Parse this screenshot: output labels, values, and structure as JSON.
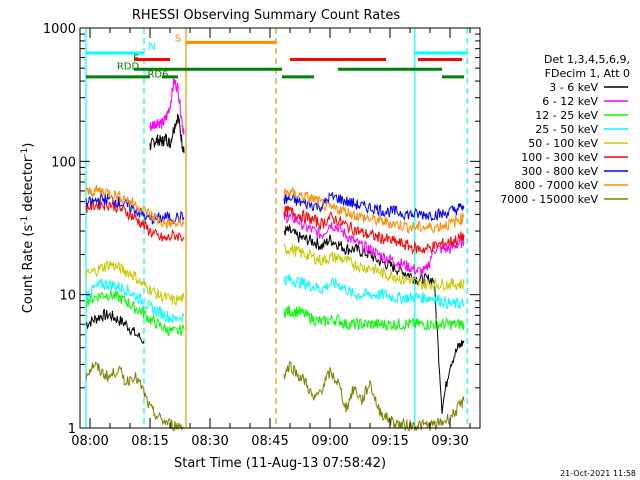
{
  "chart_data": {
    "type": "line",
    "title": "RHESSI Observing Summary Count Rates",
    "xlabel": "Start Time (11-Aug-13 07:58:42)",
    "ylabel_prefix": "Count Rate (s",
    "ylabel_sup1": "-1",
    "ylabel_mid": " detector",
    "ylabel_sup2": "-1",
    "ylabel_suffix": ")",
    "ylog": true,
    "ylim": [
      1,
      1000
    ],
    "xlim_minutes": [
      -2.5,
      97.5
    ],
    "x_ticks": [
      {
        "m": 0,
        "label": "08:00"
      },
      {
        "m": 15,
        "label": "08:15"
      },
      {
        "m": 30,
        "label": "08:30"
      },
      {
        "m": 45,
        "label": "08:45"
      },
      {
        "m": 60,
        "label": "09:00"
      },
      {
        "m": 75,
        "label": "09:15"
      },
      {
        "m": 90,
        "label": "09:30"
      }
    ],
    "y_ticks": [
      {
        "v": 1,
        "label": "1"
      },
      {
        "v": 10,
        "label": "10"
      },
      {
        "v": 100,
        "label": "100"
      },
      {
        "v": 1000,
        "label": "1000"
      }
    ],
    "legend": {
      "header1": "Det 1,3,4,5,6,9,",
      "header2": "FDecim 1, Att 0",
      "placement": "right"
    },
    "series": [
      {
        "name": "3 - 6 keV",
        "color": "#000000",
        "segments": [
          {
            "x": [
              -1,
              1,
              3,
              5,
              7,
              9,
              11,
              13.5
            ],
            "y": [
              6,
              6.5,
              7,
              7,
              6.5,
              6,
              5.2,
              4.5
            ]
          },
          {
            "x": [
              15,
              16,
              17,
              18,
              19,
              20,
              21,
              22,
              23,
              23.5
            ],
            "y": [
              130,
              140,
              145,
              140,
              150,
              135,
              180,
              220,
              140,
              115
            ]
          },
          {
            "x": [
              48.5,
              50,
              52,
              54,
              56,
              58,
              60,
              62,
              64,
              66,
              68,
              70,
              72,
              74,
              76,
              78,
              80,
              82,
              84,
              86,
              88,
              90,
              92,
              93.5
            ],
            "y": [
              30,
              30,
              27,
              26,
              25,
              23,
              26,
              24,
              22,
              22,
              21,
              20,
              18,
              17,
              16,
              15,
              14,
              13,
              13,
              13,
              1.4,
              3,
              4,
              4.5
            ]
          }
        ]
      },
      {
        "name": "6 - 12 keV",
        "color": "#ff00ff",
        "segments": [
          {
            "x": [
              15,
              16,
              17,
              18,
              19,
              20,
              21,
              22,
              23,
              23.5
            ],
            "y": [
              180,
              190,
              200,
              190,
              210,
              260,
              400,
              350,
              200,
              160
            ]
          },
          {
            "x": [
              48.5,
              50,
              52,
              54,
              56,
              58,
              60,
              62,
              64,
              66,
              68,
              70,
              72,
              74,
              76,
              78,
              80,
              82,
              84,
              86,
              88,
              90,
              92,
              93.5
            ],
            "y": [
              38,
              38,
              36,
              32,
              30,
              28,
              34,
              32,
              28,
              25,
              23,
              22,
              20,
              19,
              18,
              17,
              16,
              15,
              15,
              22,
              22,
              22,
              24,
              25
            ]
          }
        ]
      },
      {
        "name": "12 - 25 keV",
        "color": "#00ff00",
        "segments": [
          {
            "x": [
              -1,
              1,
              3,
              5,
              7,
              9,
              11,
              13,
              15,
              17,
              19,
              21,
              23.5
            ],
            "y": [
              9,
              9.5,
              10,
              10,
              9.5,
              9,
              8,
              7.5,
              6.5,
              6,
              5.5,
              5.2,
              5.5
            ]
          },
          {
            "x": [
              48.5,
              50,
              52,
              54,
              56,
              58,
              60,
              62,
              64,
              66,
              68,
              70,
              72,
              74,
              76,
              78,
              80,
              82,
              84,
              86,
              88,
              90,
              92,
              93.5
            ],
            "y": [
              7.5,
              7.5,
              7.5,
              7,
              6.5,
              6.2,
              6.5,
              6.5,
              6,
              6,
              6,
              6,
              6,
              6,
              6,
              6,
              6,
              6,
              6,
              6,
              6,
              6,
              6,
              6
            ]
          }
        ]
      },
      {
        "name": "25 - 50 keV",
        "color": "#00ffff",
        "segments": [
          {
            "x": [
              -1,
              1,
              3,
              5,
              7,
              9,
              11,
              13,
              15,
              17,
              19,
              21,
              23.5
            ],
            "y": [
              10,
              11,
              12,
              12,
              11.5,
              11,
              10,
              9,
              8,
              7.5,
              7,
              6.5,
              7
            ]
          },
          {
            "x": [
              48.5,
              50,
              52,
              54,
              56,
              58,
              60,
              62,
              64,
              66,
              68,
              70,
              72,
              74,
              76,
              78,
              80,
              82,
              84,
              86,
              88,
              90,
              92,
              93.5
            ],
            "y": [
              13,
              13,
              12.5,
              12,
              11.5,
              11,
              12,
              12,
              11,
              10,
              10,
              10,
              10,
              10,
              9.5,
              9.5,
              9.5,
              9.5,
              9.5,
              9.5,
              9,
              8.5,
              8.5,
              8.5
            ]
          }
        ]
      },
      {
        "name": "50 - 100 keV",
        "color": "#c8c800",
        "segments": [
          {
            "x": [
              -1,
              1,
              3,
              5,
              7,
              9,
              11,
              13,
              15,
              17,
              19,
              21,
              23.5
            ],
            "y": [
              14,
              15,
              16,
              17,
              16,
              15,
              14,
              12,
              11,
              10,
              9.5,
              9,
              9.5
            ]
          },
          {
            "x": [
              48.5,
              50,
              52,
              54,
              56,
              58,
              60,
              62,
              64,
              66,
              68,
              70,
              72,
              74,
              76,
              78,
              80,
              82,
              84,
              86,
              88,
              90,
              92,
              93.5
            ],
            "y": [
              22,
              22,
              21,
              20,
              19,
              18,
              19,
              19,
              18,
              17,
              16,
              16,
              15,
              14,
              14,
              13,
              13,
              12,
              12,
              12,
              12,
              12,
              12,
              12
            ]
          }
        ]
      },
      {
        "name": "100 - 300 keV",
        "color": "#ff0000",
        "segments": [
          {
            "x": [
              -1,
              1,
              3,
              5,
              7,
              9,
              11,
              13,
              15,
              17,
              19,
              21,
              23.5
            ],
            "y": [
              45,
              47,
              48,
              48,
              45,
              42,
              38,
              34,
              30,
              27,
              26,
              28,
              27
            ]
          },
          {
            "x": [
              48.5,
              50,
              52,
              54,
              56,
              58,
              60,
              62,
              64,
              66,
              68,
              70,
              72,
              74,
              76,
              78,
              80,
              82,
              84,
              86,
              88,
              90,
              92,
              93.5
            ],
            "y": [
              42,
              42,
              40,
              38,
              36,
              34,
              38,
              36,
              33,
              31,
              29,
              28,
              27,
              26,
              25,
              24,
              23,
              22,
              22,
              23,
              24,
              25,
              26,
              28
            ]
          }
        ]
      },
      {
        "name": "300 - 800 keV",
        "color": "#0000ff",
        "segments": [
          {
            "x": [
              -1,
              1,
              3,
              5,
              7,
              9,
              11,
              13,
              15,
              17,
              19,
              21,
              23.5
            ],
            "y": [
              48,
              50,
              52,
              52,
              50,
              47,
              44,
              40,
              37,
              37,
              38,
              38,
              38
            ]
          },
          {
            "x": [
              48.5,
              50,
              52,
              54,
              56,
              58,
              60,
              62,
              64,
              66,
              68,
              70,
              72,
              74,
              76,
              78,
              80,
              82,
              84,
              86,
              88,
              90,
              92,
              93.5
            ],
            "y": [
              52,
              52,
              50,
              48,
              47,
              46,
              54,
              53,
              50,
              48,
              46,
              45,
              44,
              42,
              42,
              41,
              40,
              40,
              40,
              40,
              40,
              42,
              44,
              46
            ]
          }
        ]
      },
      {
        "name": "800 - 7000 keV",
        "color": "#ff8c00",
        "segments": [
          {
            "x": [
              -1,
              1,
              3,
              5,
              7,
              9,
              11,
              13,
              15,
              17,
              19,
              21,
              23.5
            ],
            "y": [
              58,
              60,
              60,
              58,
              55,
              52,
              48,
              44,
              40,
              36,
              34,
              34,
              34
            ]
          },
          {
            "x": [
              48.5,
              50,
              52,
              54,
              56,
              58,
              60,
              62,
              64,
              66,
              68,
              70,
              72,
              74,
              76,
              78,
              80,
              82,
              84,
              86,
              88,
              90,
              92,
              93.5
            ],
            "y": [
              58,
              58,
              56,
              54,
              52,
              48,
              44,
              44,
              42,
              40,
              38,
              37,
              36,
              35,
              34,
              33,
              32,
              32,
              32,
              32,
              33,
              34,
              36,
              38
            ]
          }
        ]
      },
      {
        "name": "7000 - 15000 keV",
        "color": "#808000",
        "segments": [
          {
            "x": [
              -1,
              1,
              3,
              5,
              7,
              9,
              11,
              13,
              15,
              17,
              19,
              21,
              23.5
            ],
            "y": [
              2.5,
              3,
              2.6,
              2.4,
              2.8,
              2.2,
              2.5,
              2,
              1.4,
              1.2,
              1.1,
              1.05,
              1.02
            ]
          },
          {
            "x": [
              48.5,
              50,
              52,
              54,
              56,
              58,
              60,
              62,
              64,
              66,
              68,
              70,
              72,
              74,
              76,
              78,
              80,
              82,
              84,
              86,
              88,
              90,
              92,
              93.5
            ],
            "y": [
              2.5,
              3,
              2.5,
              2.2,
              1.6,
              2,
              2.6,
              2.2,
              1.4,
              2,
              1.6,
              2.2,
              1.4,
              1.2,
              1.1,
              1.05,
              1.05,
              1.05,
              1.05,
              1.05,
              1.1,
              1.2,
              1.4,
              1.6
            ]
          }
        ]
      }
    ],
    "vertical_lines": [
      {
        "m": -1.0,
        "color": "#00ffff",
        "dash": false
      },
      {
        "m": 13.5,
        "color": "#00ffff",
        "dash": true
      },
      {
        "m": 24.0,
        "color": "#ff8c00",
        "dash": false
      },
      {
        "m": 46.5,
        "color": "#ff8c00",
        "dash": true
      },
      {
        "m": 81.2,
        "color": "#00ffff",
        "dash": false
      },
      {
        "m": 94.3,
        "color": "#00ffff",
        "dash": true
      }
    ],
    "status_bars": [
      {
        "color": "#00ffff",
        "y": 650,
        "from": -1,
        "to": 13.5
      },
      {
        "color": "#00ffff",
        "y": 650,
        "from": 81.2,
        "to": 94.3
      },
      {
        "color": "#ff8c00",
        "y": 780,
        "from": 24,
        "to": 46.5
      },
      {
        "color": "#ff0000",
        "y": 580,
        "from": 11,
        "to": 20
      },
      {
        "color": "#ff0000",
        "y": 580,
        "from": 50,
        "to": 74
      },
      {
        "color": "#ff0000",
        "y": 580,
        "from": 82,
        "to": 93
      },
      {
        "color": "#008000",
        "y": 490,
        "from": 11,
        "to": 48
      },
      {
        "color": "#008000",
        "y": 490,
        "from": 62,
        "to": 88
      },
      {
        "color": "#008000",
        "y": 430,
        "from": -1,
        "to": 15
      },
      {
        "color": "#008000",
        "y": 430,
        "from": 18,
        "to": 22
      },
      {
        "color": "#008000",
        "y": 430,
        "from": 48,
        "to": 56
      },
      {
        "color": "#008000",
        "y": 430,
        "from": 88,
        "to": 93.5
      }
    ],
    "annotations": [
      {
        "text": "N",
        "color": "#00ffff",
        "m": 15.5,
        "y": 690
      },
      {
        "text": "S",
        "color": "#ff8c00",
        "m": 22,
        "y": 790
      },
      {
        "text": "F",
        "color": "#008000",
        "m": 11.5,
        "y": 560
      },
      {
        "text": "RDD",
        "color": "#008000",
        "m": 9.5,
        "y": 490
      },
      {
        "text": "RD6",
        "color": "#008000",
        "m": 17,
        "y": 425
      }
    ]
  },
  "timestamp": "21-Oct-2021 11:58"
}
